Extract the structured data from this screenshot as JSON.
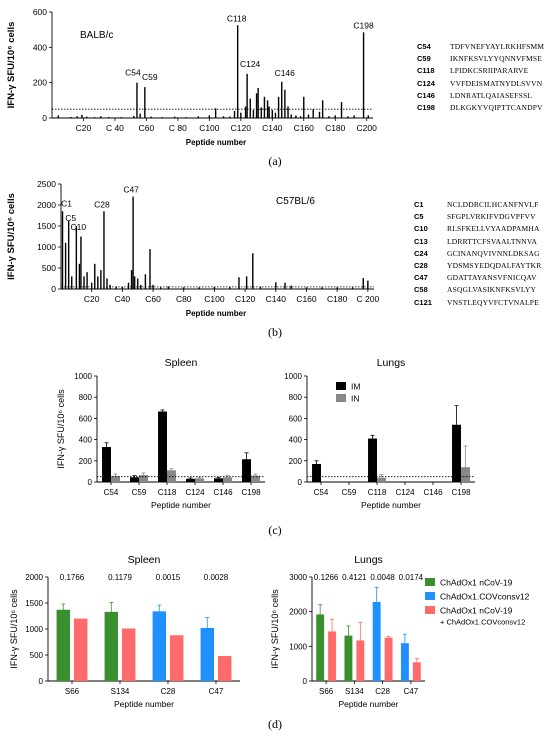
{
  "chart_data": [
    {
      "panel": "a",
      "type": "bar",
      "caption": "(a)",
      "strain": "BALB/c",
      "ylabel": "IFN-γ SFU/10⁶ cells",
      "xlabel": "Peptide number",
      "ylim": [
        0,
        600
      ],
      "yticks": [
        0,
        200,
        400,
        600
      ],
      "xlim": [
        0,
        204
      ],
      "xticks": [
        20,
        40,
        60,
        80,
        100,
        120,
        140,
        160,
        180,
        200
      ],
      "xtick_labels": [
        "C20",
        "C 40",
        "C60",
        "C 80",
        "C100",
        "C120",
        "C140",
        "C160",
        "C180",
        "C200"
      ],
      "cutoff": 50,
      "peaks": [
        {
          "label": "C54",
          "x": 54,
          "y": 200
        },
        {
          "label": "C59",
          "x": 59,
          "y": 175
        },
        {
          "label": "C118",
          "x": 118,
          "y": 525
        },
        {
          "label": "C124",
          "x": 124,
          "y": 250
        },
        {
          "label": "C146",
          "x": 146,
          "y": 205
        },
        {
          "label": "C198",
          "x": 198,
          "y": 485
        }
      ],
      "bars": [
        [
          4,
          15
        ],
        [
          12,
          6
        ],
        [
          16,
          10
        ],
        [
          19,
          18
        ],
        [
          22,
          8
        ],
        [
          27,
          5
        ],
        [
          31,
          10
        ],
        [
          36,
          6
        ],
        [
          44,
          5
        ],
        [
          52,
          12
        ],
        [
          54,
          200
        ],
        [
          56,
          25
        ],
        [
          59,
          175
        ],
        [
          63,
          8
        ],
        [
          70,
          5
        ],
        [
          78,
          8
        ],
        [
          85,
          5
        ],
        [
          93,
          10
        ],
        [
          100,
          15
        ],
        [
          104,
          55
        ],
        [
          109,
          10
        ],
        [
          113,
          8
        ],
        [
          116,
          40
        ],
        [
          118,
          525
        ],
        [
          120,
          30
        ],
        [
          123,
          65
        ],
        [
          124,
          250
        ],
        [
          126,
          110
        ],
        [
          128,
          45
        ],
        [
          130,
          140
        ],
        [
          131,
          170
        ],
        [
          133,
          60
        ],
        [
          135,
          120
        ],
        [
          137,
          100
        ],
        [
          138,
          65
        ],
        [
          140,
          45
        ],
        [
          142,
          30
        ],
        [
          144,
          120
        ],
        [
          146,
          205
        ],
        [
          148,
          160
        ],
        [
          150,
          65
        ],
        [
          152,
          20
        ],
        [
          155,
          15
        ],
        [
          158,
          10
        ],
        [
          160,
          120
        ],
        [
          163,
          20
        ],
        [
          166,
          50
        ],
        [
          170,
          35
        ],
        [
          172,
          100
        ],
        [
          176,
          10
        ],
        [
          180,
          15
        ],
        [
          184,
          90
        ],
        [
          188,
          10
        ],
        [
          192,
          15
        ],
        [
          198,
          485
        ],
        [
          201,
          15
        ]
      ],
      "sequences": [
        {
          "id": "C54",
          "seq": "TDFVNEFYAYLRKHFSMM"
        },
        {
          "id": "C59",
          "seq": "IKNFKSVLYYQNNVFMSE"
        },
        {
          "id": "C118",
          "seq": "LPIDKCSRIIPARARVE"
        },
        {
          "id": "C124",
          "seq": "VVFDEISMATNYDLSVVN"
        },
        {
          "id": "C146",
          "seq": "LDNRATLQAIASEFSSL"
        },
        {
          "id": "C198",
          "seq": "DLKGKYVQIPTTCANDPV"
        }
      ]
    },
    {
      "panel": "b",
      "type": "bar",
      "caption": "(b)",
      "strain": "C57BL/6",
      "ylabel": "IFN-γ SFU/10⁶ cells",
      "xlabel": "Peptide number",
      "ylim": [
        0,
        2500
      ],
      "yticks": [
        0,
        500,
        1000,
        1500,
        2000,
        2500
      ],
      "xlim": [
        0,
        204
      ],
      "xticks": [
        20,
        40,
        60,
        80,
        100,
        120,
        140,
        160,
        180,
        200
      ],
      "xtick_labels": [
        "C20",
        "C40",
        "C60",
        "C80",
        "C100",
        "C120",
        "C140",
        "C160",
        "C180",
        "C 200"
      ],
      "cutoff": 50,
      "peaks": [
        {
          "label": "C1",
          "x": 1,
          "y": 1850
        },
        {
          "label": "C5",
          "x": 5,
          "y": 1620
        },
        {
          "label": "C10",
          "x": 10,
          "y": 1500
        },
        {
          "label": "C28",
          "x": 28,
          "y": 1850
        },
        {
          "label": "C47",
          "x": 47,
          "y": 2200
        }
      ],
      "bars": [
        [
          1,
          1850
        ],
        [
          3,
          1100
        ],
        [
          5,
          1620
        ],
        [
          7,
          300
        ],
        [
          10,
          1500
        ],
        [
          12,
          600
        ],
        [
          13,
          1250
        ],
        [
          15,
          300
        ],
        [
          17,
          400
        ],
        [
          20,
          150
        ],
        [
          22,
          600
        ],
        [
          24,
          300
        ],
        [
          26,
          450
        ],
        [
          28,
          1850
        ],
        [
          30,
          250
        ],
        [
          32,
          100
        ],
        [
          36,
          60
        ],
        [
          40,
          50
        ],
        [
          44,
          150
        ],
        [
          46,
          450
        ],
        [
          47,
          2200
        ],
        [
          48,
          300
        ],
        [
          50,
          250
        ],
        [
          52,
          100
        ],
        [
          55,
          350
        ],
        [
          58,
          950
        ],
        [
          60,
          100
        ],
        [
          65,
          40
        ],
        [
          70,
          60
        ],
        [
          80,
          40
        ],
        [
          90,
          40
        ],
        [
          100,
          50
        ],
        [
          110,
          60
        ],
        [
          116,
          280
        ],
        [
          121,
          300
        ],
        [
          125,
          850
        ],
        [
          130,
          50
        ],
        [
          140,
          160
        ],
        [
          146,
          150
        ],
        [
          150,
          80
        ],
        [
          160,
          40
        ],
        [
          170,
          40
        ],
        [
          180,
          40
        ],
        [
          190,
          40
        ],
        [
          197,
          260
        ],
        [
          200,
          200
        ]
      ],
      "sequences": [
        {
          "id": "C1",
          "seq": "NCLDDRCILHCANFNVLF"
        },
        {
          "id": "C5",
          "seq": "SFGPLVRKIFVDGVPFVV"
        },
        {
          "id": "C10",
          "seq": "RLSFKELLVYAADPAMHA"
        },
        {
          "id": "C13",
          "seq": "LDRRTTCFSVAALTNNVA"
        },
        {
          "id": "C24",
          "seq": "GCINANQVIVNNLDKSAG"
        },
        {
          "id": "C28",
          "seq": "YDSMSYEDQDALFAYTKR"
        },
        {
          "id": "C47",
          "seq": "GDATTAYANSVFNICQAV"
        },
        {
          "id": "C58",
          "seq": "ASQGLVASIKNFKSVLYY"
        },
        {
          "id": "C121",
          "seq": "VNSTLEQYVFCTVNALPE"
        }
      ]
    },
    {
      "panel": "c-spleen",
      "type": "bar",
      "title": "Spleen",
      "ylabel": "IFN-γ SFU/10⁶ cells",
      "xlabel": "Peptide number",
      "ylim": [
        0,
        1000
      ],
      "yticks": [
        0,
        200,
        400,
        600,
        800,
        1000
      ],
      "categories": [
        "C54",
        "C59",
        "C118",
        "C124",
        "C146",
        "C198"
      ],
      "cutoff": 50,
      "series": [
        {
          "name": "IM",
          "color": "#000000",
          "values": [
            330,
            45,
            665,
            30,
            35,
            215
          ],
          "err": [
            40,
            15,
            15,
            8,
            10,
            60
          ]
        },
        {
          "name": "IN",
          "color": "#888888",
          "values": [
            55,
            65,
            110,
            35,
            45,
            60
          ],
          "err": [
            20,
            20,
            15,
            10,
            15,
            15
          ]
        }
      ]
    },
    {
      "panel": "c-lungs",
      "type": "bar",
      "title": "Lungs",
      "ylabel": "",
      "xlabel": "Peptide number",
      "ylim": [
        0,
        1000
      ],
      "yticks": [
        0,
        200,
        400,
        600,
        800,
        1000
      ],
      "categories": [
        "C54",
        "C59",
        "C118",
        "C124",
        "C146",
        "C198"
      ],
      "cutoff": 50,
      "legend": [
        {
          "name": "IM",
          "color": "#000000"
        },
        {
          "name": "IN",
          "color": "#888888"
        }
      ],
      "series": [
        {
          "name": "IM",
          "color": "#000000",
          "values": [
            170,
            0,
            410,
            0,
            0,
            540
          ],
          "err": [
            30,
            0,
            30,
            0,
            0,
            180
          ]
        },
        {
          "name": "IN",
          "color": "#888888",
          "values": [
            0,
            0,
            40,
            0,
            0,
            140
          ],
          "err": [
            0,
            0,
            30,
            0,
            0,
            200
          ]
        }
      ],
      "caption": "(c)"
    },
    {
      "panel": "d-spleen",
      "type": "bar",
      "title": "Spleen",
      "ylabel": "IFN-γ SFU/10⁶ cells",
      "xlabel": "Peptide number",
      "ylim": [
        0,
        2000
      ],
      "yticks": [
        0,
        500,
        1000,
        1500,
        2000
      ],
      "categories": [
        "S66",
        "S134",
        "C28",
        "C47"
      ],
      "pvalues": [
        "0.1766",
        "0.1179",
        "0.0015",
        "0.0028"
      ],
      "bars": [
        {
          "cat": 0,
          "slot": 0,
          "value": 1370,
          "err": 110
        },
        {
          "cat": 0,
          "slot": 2,
          "value": 1200,
          "err": 0
        },
        {
          "cat": 1,
          "slot": 0,
          "value": 1330,
          "err": 180
        },
        {
          "cat": 1,
          "slot": 2,
          "value": 1010,
          "err": 0
        },
        {
          "cat": 2,
          "slot": 1,
          "value": 1340,
          "err": 120
        },
        {
          "cat": 2,
          "slot": 2,
          "value": 880,
          "err": 0
        },
        {
          "cat": 3,
          "slot": 1,
          "value": 1020,
          "err": 200
        },
        {
          "cat": 3,
          "slot": 2,
          "value": 480,
          "err": 0
        }
      ]
    },
    {
      "panel": "d-lungs",
      "type": "bar",
      "title": "Lungs",
      "ylabel": "IFN-γ SFU/10⁶ cells",
      "xlabel": "Peptide number",
      "ylim": [
        0,
        3000
      ],
      "yticks": [
        0,
        1000,
        2000,
        3000
      ],
      "categories": [
        "S66",
        "S134",
        "C28",
        "C47"
      ],
      "pvalues": [
        "0.1266",
        "0.4121",
        "0.0048",
        "0.0174"
      ],
      "bars": [
        {
          "cat": 0,
          "slot": 0,
          "value": 1920,
          "err": 280
        },
        {
          "cat": 0,
          "slot": 2,
          "value": 1430,
          "err": 350
        },
        {
          "cat": 1,
          "slot": 0,
          "value": 1310,
          "err": 280
        },
        {
          "cat": 1,
          "slot": 2,
          "value": 1170,
          "err": 520
        },
        {
          "cat": 2,
          "slot": 1,
          "value": 2280,
          "err": 420
        },
        {
          "cat": 2,
          "slot": 2,
          "value": 1250,
          "err": 40
        },
        {
          "cat": 3,
          "slot": 1,
          "value": 1090,
          "err": 260
        },
        {
          "cat": 3,
          "slot": 2,
          "value": 540,
          "err": 110
        }
      ],
      "legend": [
        {
          "name": "ChAdOx1 nCoV-19",
          "color": "#3a8f2e"
        },
        {
          "name": "ChAdOx1.COVconsv12",
          "color": "#1e90ff"
        },
        {
          "name": "ChAdOx1 nCoV-19",
          "color": "#ff6b6b"
        },
        {
          "name": "+ ChAdOx1.COVconsv12",
          "color": "#ff6b6b"
        }
      ],
      "caption": "(d)"
    }
  ]
}
